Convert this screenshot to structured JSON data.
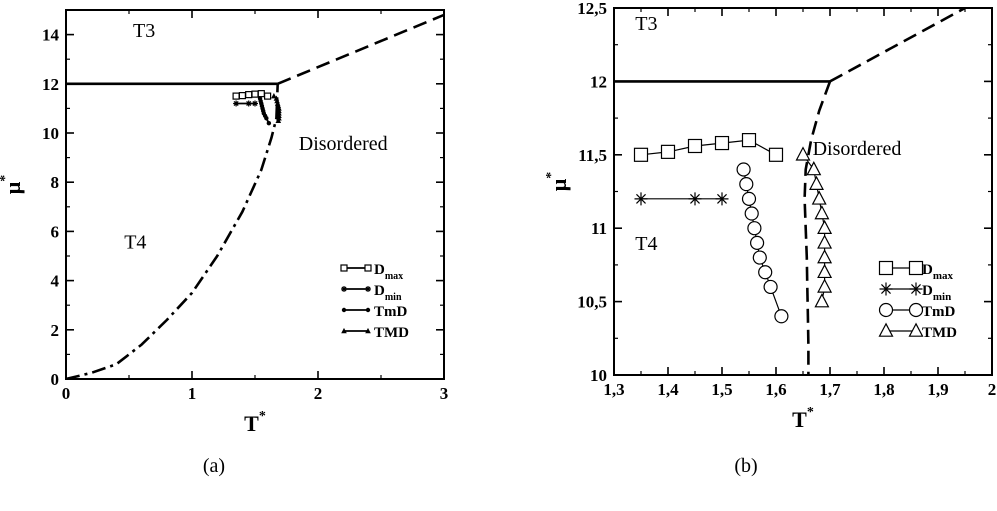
{
  "captions": [
    "(a)",
    "(b)"
  ],
  "chart_data": [
    {
      "type": "line",
      "panel": "(a)",
      "xlabel": "T",
      "xlabel_sup": "*",
      "ylabel": "μ",
      "ylabel_sup": "*",
      "xlim": [
        0,
        3
      ],
      "ylim": [
        0,
        15
      ],
      "xticks": [
        0,
        1,
        2,
        3
      ],
      "xticklabels": [
        "0",
        "1",
        "2",
        "3"
      ],
      "yticks": [
        0,
        2,
        4,
        6,
        8,
        10,
        12,
        14
      ],
      "yticklabels": [
        "0",
        "2",
        "4",
        "6",
        "8",
        "10",
        "12",
        "14"
      ],
      "grid": false,
      "legend_position": "lower-right",
      "annotations": [
        {
          "text": "T3",
          "x": 0.62,
          "y": 13.9
        },
        {
          "text": "T4",
          "x": 0.55,
          "y": 5.3
        },
        {
          "text": "Disordered",
          "x": 2.2,
          "y": 9.3
        }
      ],
      "boundaries": [
        {
          "style": "solid",
          "points": [
            [
              0,
              12.0
            ],
            [
              1.68,
              12.0
            ]
          ]
        },
        {
          "style": "dashed",
          "points": [
            [
              1.68,
              12.0
            ],
            [
              3.0,
              14.8
            ]
          ]
        },
        {
          "style": "dashdot",
          "points": [
            [
              0,
              0
            ],
            [
              0.2,
              0.25
            ],
            [
              0.4,
              0.6
            ],
            [
              0.6,
              1.4
            ],
            [
              0.8,
              2.4
            ],
            [
              1.0,
              3.5
            ],
            [
              1.2,
              5.0
            ],
            [
              1.4,
              6.8
            ],
            [
              1.55,
              8.5
            ],
            [
              1.63,
              9.8
            ],
            [
              1.67,
              10.6
            ],
            [
              1.68,
              12.0
            ]
          ]
        }
      ],
      "series": [
        {
          "name": "D",
          "name_sub": "max",
          "marker": "square",
          "x": [
            1.35,
            1.4,
            1.45,
            1.5,
            1.55,
            1.6
          ],
          "y": [
            11.5,
            11.52,
            11.56,
            11.58,
            11.6,
            11.5
          ]
        },
        {
          "name": "D",
          "name_sub": "min",
          "marker": "star",
          "x": [
            1.35,
            1.45,
            1.5
          ],
          "y": [
            11.2,
            11.2,
            11.2
          ]
        },
        {
          "name": "TmD",
          "marker": "circle",
          "x": [
            1.54,
            1.545,
            1.55,
            1.555,
            1.56,
            1.565,
            1.57,
            1.58,
            1.59,
            1.61
          ],
          "y": [
            11.4,
            11.3,
            11.2,
            11.1,
            11.0,
            10.9,
            10.8,
            10.7,
            10.6,
            10.4
          ]
        },
        {
          "name": "TMD",
          "marker": "triangle",
          "x": [
            1.65,
            1.67,
            1.675,
            1.68,
            1.685,
            1.69,
            1.69,
            1.69,
            1.69,
            1.69,
            1.685
          ],
          "y": [
            11.5,
            11.4,
            11.3,
            11.2,
            11.1,
            11.0,
            10.9,
            10.8,
            10.7,
            10.6,
            10.5
          ]
        }
      ]
    },
    {
      "type": "line",
      "panel": "(b)",
      "xlabel": "T",
      "xlabel_sup": "*",
      "ylabel": "μ",
      "ylabel_sup": "*",
      "xlim": [
        1.3,
        2.0
      ],
      "ylim": [
        10,
        12.5
      ],
      "xticks": [
        1.3,
        1.4,
        1.5,
        1.6,
        1.7,
        1.8,
        1.9,
        2.0
      ],
      "xticklabels": [
        "1,3",
        "1,4",
        "1,5",
        "1,6",
        "1,7",
        "1,8",
        "1,9",
        "2"
      ],
      "yticks": [
        10,
        10.5,
        11,
        11.5,
        12,
        12.5
      ],
      "yticklabels": [
        "10",
        "10,5",
        "11",
        "11,5",
        "12",
        "12,5"
      ],
      "grid": false,
      "legend_position": "lower-right",
      "annotations": [
        {
          "text": "T3",
          "x": 1.36,
          "y": 12.35
        },
        {
          "text": "T4",
          "x": 1.36,
          "y": 10.85
        },
        {
          "text": "Disordered",
          "x": 1.75,
          "y": 11.5
        }
      ],
      "boundaries": [
        {
          "style": "solid",
          "points": [
            [
              1.3,
              12.0
            ],
            [
              1.7,
              12.0
            ]
          ]
        },
        {
          "style": "dashed",
          "points": [
            [
              1.7,
              12.0
            ],
            [
              1.95,
              12.5
            ]
          ]
        },
        {
          "style": "dashed",
          "points": [
            [
              1.7,
              12.0
            ],
            [
              1.68,
              11.8
            ],
            [
              1.665,
              11.6
            ],
            [
              1.655,
              11.4
            ],
            [
              1.653,
              11.2
            ],
            [
              1.655,
              11.0
            ],
            [
              1.657,
              10.8
            ],
            [
              1.658,
              10.6
            ],
            [
              1.659,
              10.4
            ],
            [
              1.66,
              10.2
            ],
            [
              1.66,
              10.0
            ]
          ]
        }
      ],
      "series": [
        {
          "name": "D",
          "name_sub": "max",
          "marker": "square",
          "x": [
            1.35,
            1.4,
            1.45,
            1.5,
            1.55,
            1.6
          ],
          "y": [
            11.5,
            11.52,
            11.56,
            11.58,
            11.6,
            11.5
          ]
        },
        {
          "name": "D",
          "name_sub": "min",
          "marker": "star",
          "x": [
            1.35,
            1.45,
            1.5
          ],
          "y": [
            11.2,
            11.2,
            11.2
          ]
        },
        {
          "name": "TmD",
          "marker": "circle",
          "x": [
            1.54,
            1.545,
            1.55,
            1.555,
            1.56,
            1.565,
            1.57,
            1.58,
            1.59,
            1.61
          ],
          "y": [
            11.4,
            11.3,
            11.2,
            11.1,
            11.0,
            10.9,
            10.8,
            10.7,
            10.6,
            10.4
          ]
        },
        {
          "name": "TMD",
          "marker": "triangle",
          "x": [
            1.65,
            1.67,
            1.675,
            1.68,
            1.685,
            1.69,
            1.69,
            1.69,
            1.69,
            1.69,
            1.685
          ],
          "y": [
            11.5,
            11.4,
            11.3,
            11.2,
            11.1,
            11.0,
            10.9,
            10.8,
            10.7,
            10.6,
            10.5
          ]
        }
      ]
    }
  ]
}
